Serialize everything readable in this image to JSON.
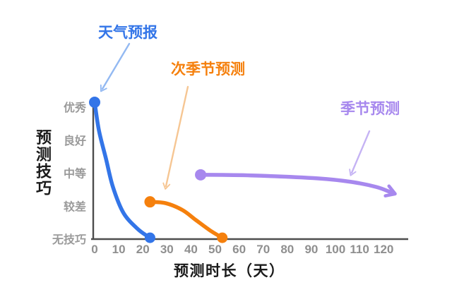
{
  "chart_data": {
    "type": "line",
    "title": "",
    "xlabel": "预测时长（天）",
    "ylabel": "预测技巧",
    "x_ticks": [
      0,
      10,
      20,
      30,
      40,
      50,
      60,
      70,
      80,
      90,
      100,
      110,
      120
    ],
    "xlim": [
      0,
      130
    ],
    "y_tick_labels": [
      "无技巧",
      "较差",
      "中等",
      "良好",
      "优秀"
    ],
    "y_tick_values": [
      0,
      1,
      2,
      3,
      4
    ],
    "ylim": [
      0,
      4.2
    ],
    "grid": false,
    "legend_position": "inline-annotations",
    "axis_color": "#4d4d4d",
    "tick_label_color": "#8f8f8f",
    "series": [
      {
        "name": "天气预报",
        "color": "#3375e8",
        "annotation_arrow_color": "#93b9f2",
        "dot_start": true,
        "dot_end": true,
        "arrow_end": false,
        "points": [
          [
            0,
            4.15
          ],
          [
            1.8,
            3.29
          ],
          [
            4.7,
            2.44
          ],
          [
            7.6,
            1.58
          ],
          [
            12,
            0.79
          ],
          [
            18,
            0.3
          ],
          [
            23,
            0.04
          ]
        ]
      },
      {
        "name": "次季节预测",
        "color": "#f5800d",
        "annotation_arrow_color": "#f6c693",
        "dot_start": true,
        "dot_end": true,
        "arrow_end": false,
        "points": [
          [
            23,
            1.13
          ],
          [
            29.5,
            1.09
          ],
          [
            36.5,
            0.88
          ],
          [
            42,
            0.58
          ],
          [
            48,
            0.26
          ],
          [
            53,
            0.04
          ]
        ]
      },
      {
        "name": "季节预测",
        "color": "#a788ee",
        "annotation_arrow_color": "#c5b3f4",
        "dot_start": true,
        "dot_end": false,
        "arrow_end": true,
        "points": [
          [
            44,
            1.95
          ],
          [
            65,
            1.93
          ],
          [
            93,
            1.84
          ],
          [
            107,
            1.73
          ],
          [
            117,
            1.58
          ],
          [
            123,
            1.42
          ]
        ]
      }
    ]
  }
}
